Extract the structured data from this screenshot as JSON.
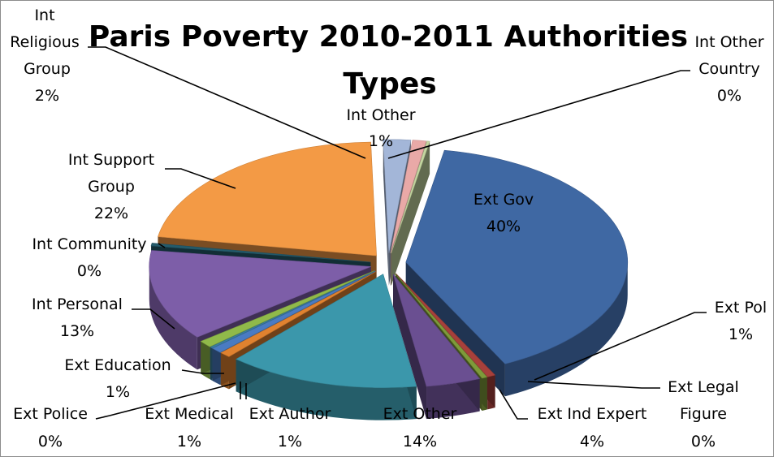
{
  "chart_data": {
    "type": "pie",
    "title_line1": "Paris Poverty 2010-2011 Authorities",
    "title_line2": "Types",
    "slices": [
      {
        "name": "Ext Gov",
        "percent": "40%",
        "value": 40,
        "color": "#3f68a3"
      },
      {
        "name": "Ext Pol",
        "percent": "1%",
        "value": 0.6,
        "color": "#a7403b"
      },
      {
        "name": "Ext Legal Figure",
        "percent": "0%",
        "value": 0.4,
        "color": "#7e9a3a"
      },
      {
        "name": "Ext Ind Expert",
        "percent": "4%",
        "value": 4,
        "color": "#6a4f91"
      },
      {
        "name": "Ext Other",
        "percent": "14%",
        "value": 14,
        "color": "#3b97ab"
      },
      {
        "name": "Ext Author",
        "percent": "1%",
        "value": 0.8,
        "color": "#e0822f"
      },
      {
        "name": "Ext Medical",
        "percent": "1%",
        "value": 0.8,
        "color": "#4a7bc2"
      },
      {
        "name": "Ext Police",
        "percent": "0%",
        "value": 0.2,
        "color": "#3b7fa0"
      },
      {
        "name": "Ext Education",
        "percent": "1%",
        "value": 1,
        "color": "#90b94a"
      },
      {
        "name": "Int Personal",
        "percent": "13%",
        "value": 13,
        "color": "#7d5ea8"
      },
      {
        "name": "Int Community",
        "percent": "0%",
        "value": 0.4,
        "color": "#245b6b"
      },
      {
        "name": "Int Support Group",
        "percent": "22%",
        "value": 22,
        "color": "#f39a45"
      },
      {
        "name": "Int Religious Group",
        "percent": "2%",
        "value": 2,
        "color": "#a3b6d8"
      },
      {
        "name": "Int Other",
        "percent": "1%",
        "value": 1,
        "color": "#e9a9a7"
      },
      {
        "name": "Int Other Country",
        "percent": "0%",
        "value": 0.2,
        "color": "#c4d6a0"
      }
    ]
  },
  "labels": {
    "ext_gov": {
      "line1": "Ext Gov",
      "pct": "40%"
    },
    "ext_pol": {
      "line1": "Ext Pol",
      "pct": "1%"
    },
    "ext_legal": {
      "line1": "Ext Legal",
      "line2": "Figure",
      "pct": "0%"
    },
    "ext_ind": {
      "line1": "Ext Ind Expert",
      "pct": "4%"
    },
    "ext_other": {
      "line1": "Ext Other",
      "pct": "14%"
    },
    "ext_author": {
      "line1": "Ext Author",
      "pct": "1%"
    },
    "ext_medical": {
      "line1": "Ext Medical",
      "pct": "1%"
    },
    "ext_police": {
      "line1": "Ext Police",
      "pct": "0%"
    },
    "ext_education": {
      "line1": "Ext Education",
      "pct": "1%"
    },
    "int_personal": {
      "line1": "Int Personal",
      "pct": "13%"
    },
    "int_community": {
      "line1": "Int Community",
      "pct": "0%"
    },
    "int_support": {
      "line1": "Int Support",
      "line2": "Group",
      "pct": "22%"
    },
    "int_religious": {
      "line1": "Int",
      "line2": "Religious",
      "line3": "Group",
      "pct": "2%"
    },
    "int_other": {
      "line1": "Int Other",
      "pct": "1%"
    },
    "int_other_country": {
      "line1": "Int Other",
      "line2": "Country",
      "pct": "0%"
    }
  }
}
